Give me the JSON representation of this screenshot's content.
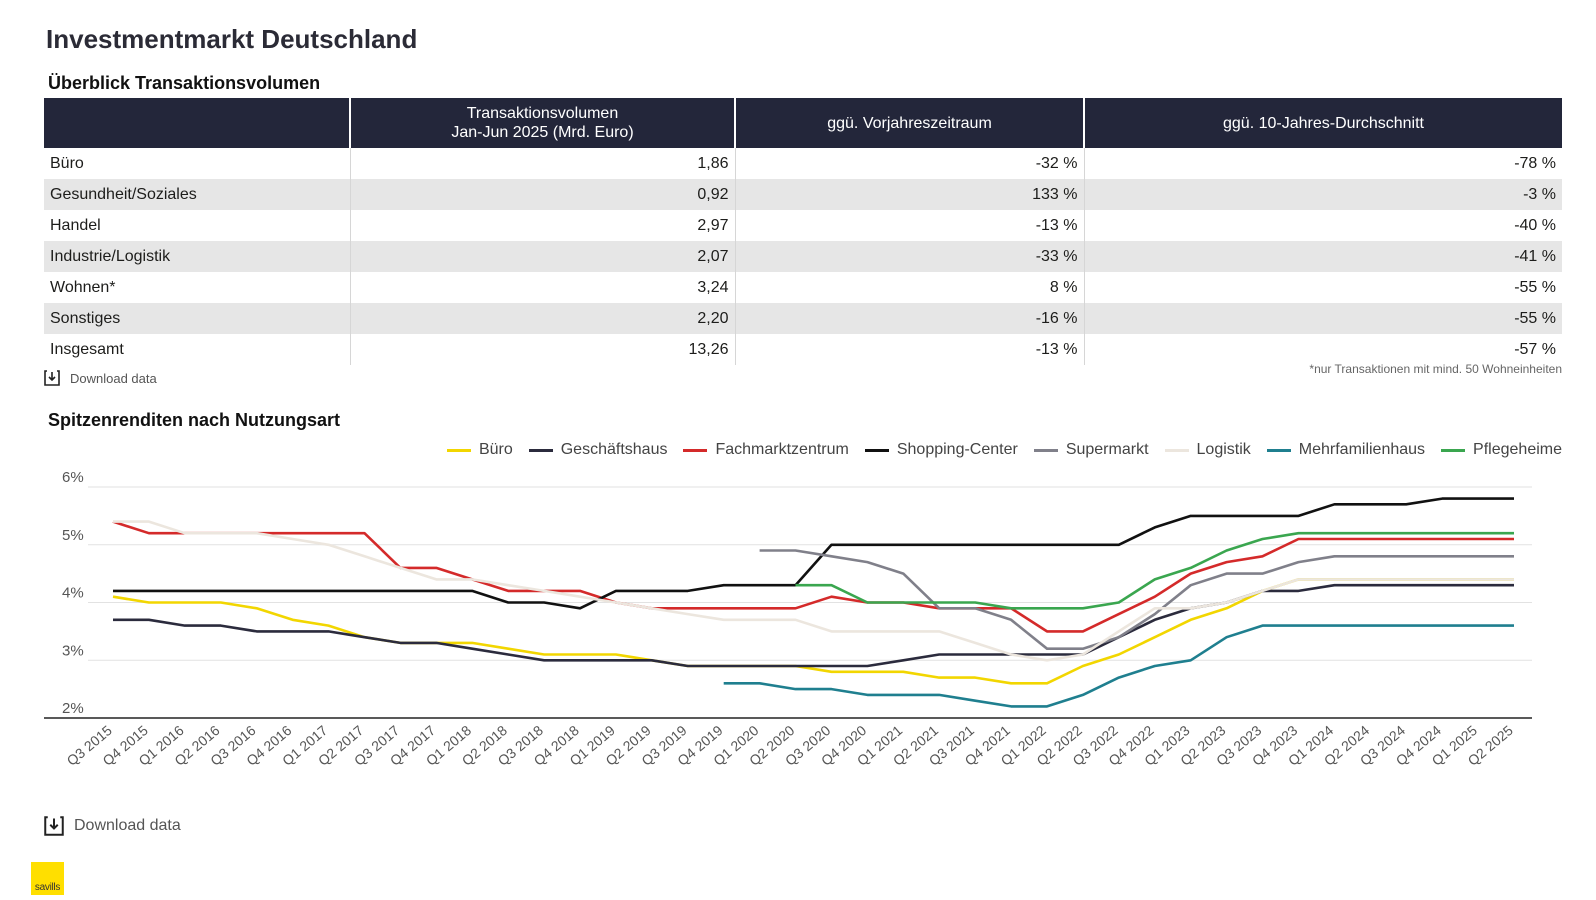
{
  "page_title": "Investmentmarkt Deutschland",
  "table_section_title": "Überblick Transaktionsvolumen",
  "table": {
    "headers": [
      "",
      "Transaktionsvolumen\nJan-Jun 2025 (Mrd. Euro)",
      "ggü. Vorjahreszeitraum",
      "ggü. 10-Jahres-Durchschnitt"
    ],
    "rows": [
      [
        "Büro",
        "1,86",
        "-32 %",
        "-78 %"
      ],
      [
        "Gesundheit/Soziales",
        "0,92",
        "133 %",
        "-3 %"
      ],
      [
        "Handel",
        "2,97",
        "-13 %",
        "-40 %"
      ],
      [
        "Industrie/Logistik",
        "2,07",
        "-33 %",
        "-41 %"
      ],
      [
        "Wohnen*",
        "3,24",
        "8 %",
        "-55 %"
      ],
      [
        "Sonstiges",
        "2,20",
        "-16 %",
        "-55 %"
      ],
      [
        "Insgesamt",
        "13,26",
        "-13 %",
        "-57 %"
      ]
    ]
  },
  "footnote": "*nur Transaktionen mit mind. 50 Wohneinheiten",
  "download_label": "Download data",
  "chart_section_title": "Spitzenrenditen nach Nutzungsart",
  "logo_text": "savills",
  "chart_data": {
    "type": "line",
    "title": "Spitzenrenditen nach Nutzungsart",
    "xlabel": "",
    "ylabel": "",
    "ylim": [
      2,
      6
    ],
    "yticks": [
      2,
      3,
      4,
      5,
      6
    ],
    "ytick_labels": [
      "2%",
      "3%",
      "4%",
      "5%",
      "6%"
    ],
    "grid": true,
    "legend": "top-right",
    "x": [
      "Q3 2015",
      "Q4 2015",
      "Q1 2016",
      "Q2 2016",
      "Q3 2016",
      "Q4 2016",
      "Q1 2017",
      "Q2 2017",
      "Q3 2017",
      "Q4 2017",
      "Q1 2018",
      "Q2 2018",
      "Q3 2018",
      "Q4 2018",
      "Q1 2019",
      "Q2 2019",
      "Q3 2019",
      "Q4 2019",
      "Q1 2020",
      "Q2 2020",
      "Q3 2020",
      "Q4 2020",
      "Q1 2021",
      "Q2 2021",
      "Q3 2021",
      "Q4 2021",
      "Q1 2022",
      "Q2 2022",
      "Q3 2022",
      "Q4 2022",
      "Q1 2023",
      "Q2 2023",
      "Q3 2023",
      "Q4 2023",
      "Q1 2024",
      "Q2 2024",
      "Q3 2024",
      "Q4 2024",
      "Q1 2025",
      "Q2 2025"
    ],
    "series": [
      {
        "name": "Büro",
        "color": "#f2d600",
        "values": [
          4.1,
          4.0,
          4.0,
          4.0,
          3.9,
          3.7,
          3.6,
          3.4,
          3.3,
          3.3,
          3.3,
          3.2,
          3.1,
          3.1,
          3.1,
          3.0,
          2.9,
          2.9,
          2.9,
          2.9,
          2.8,
          2.8,
          2.8,
          2.7,
          2.7,
          2.6,
          2.6,
          2.9,
          3.1,
          3.4,
          3.7,
          3.9,
          4.2,
          4.4,
          4.4,
          4.4,
          4.4,
          4.4,
          4.4,
          4.4
        ]
      },
      {
        "name": "Geschäftshaus",
        "color": "#2b2b3d",
        "values": [
          3.7,
          3.7,
          3.6,
          3.6,
          3.5,
          3.5,
          3.5,
          3.4,
          3.3,
          3.3,
          3.2,
          3.1,
          3.0,
          3.0,
          3.0,
          3.0,
          2.9,
          2.9,
          2.9,
          2.9,
          2.9,
          2.9,
          3.0,
          3.1,
          3.1,
          3.1,
          3.1,
          3.1,
          3.4,
          3.7,
          3.9,
          4.0,
          4.2,
          4.2,
          4.3,
          4.3,
          4.3,
          4.3,
          4.3,
          4.3
        ]
      },
      {
        "name": "Fachmarktzentrum",
        "color": "#d42a2a",
        "values": [
          5.4,
          5.2,
          5.2,
          5.2,
          5.2,
          5.2,
          5.2,
          5.2,
          4.6,
          4.6,
          4.4,
          4.2,
          4.2,
          4.2,
          4.0,
          3.9,
          3.9,
          3.9,
          3.9,
          3.9,
          4.1,
          4.0,
          4.0,
          3.9,
          3.9,
          3.9,
          3.5,
          3.5,
          3.8,
          4.1,
          4.5,
          4.7,
          4.8,
          5.1,
          5.1,
          5.1,
          5.1,
          5.1,
          5.1,
          5.1
        ]
      },
      {
        "name": "Shopping-Center",
        "color": "#111111",
        "values": [
          4.2,
          4.2,
          4.2,
          4.2,
          4.2,
          4.2,
          4.2,
          4.2,
          4.2,
          4.2,
          4.2,
          4.0,
          4.0,
          3.9,
          4.2,
          4.2,
          4.2,
          4.3,
          4.3,
          4.3,
          5.0,
          5.0,
          5.0,
          5.0,
          5.0,
          5.0,
          5.0,
          5.0,
          5.0,
          5.3,
          5.5,
          5.5,
          5.5,
          5.5,
          5.7,
          5.7,
          5.7,
          5.8,
          5.8,
          5.8
        ]
      },
      {
        "name": "Supermarkt",
        "color": "#80808a",
        "values": [
          null,
          null,
          null,
          null,
          null,
          null,
          null,
          null,
          null,
          null,
          null,
          null,
          null,
          null,
          null,
          null,
          null,
          null,
          4.9,
          4.9,
          4.8,
          4.7,
          4.5,
          3.9,
          3.9,
          3.7,
          3.2,
          3.2,
          3.4,
          3.8,
          4.3,
          4.5,
          4.5,
          4.7,
          4.8,
          4.8,
          4.8,
          4.8,
          4.8,
          4.8
        ]
      },
      {
        "name": "Logistik",
        "color": "#ece6de",
        "values": [
          5.4,
          5.4,
          5.2,
          5.2,
          5.2,
          5.1,
          5.0,
          4.8,
          4.6,
          4.4,
          4.4,
          4.3,
          4.2,
          4.1,
          4.0,
          3.9,
          3.8,
          3.7,
          3.7,
          3.7,
          3.5,
          3.5,
          3.5,
          3.5,
          3.3,
          3.1,
          3.0,
          3.1,
          3.5,
          3.9,
          3.9,
          4.0,
          4.2,
          4.4,
          4.4,
          4.4,
          4.4,
          4.4,
          4.4,
          4.4
        ]
      },
      {
        "name": "Mehrfamilienhaus",
        "color": "#1f7f8f",
        "values": [
          null,
          null,
          null,
          null,
          null,
          null,
          null,
          null,
          null,
          null,
          null,
          null,
          null,
          null,
          null,
          null,
          null,
          2.6,
          2.6,
          2.5,
          2.5,
          2.4,
          2.4,
          2.4,
          2.3,
          2.2,
          2.2,
          2.4,
          2.7,
          2.9,
          3.0,
          3.4,
          3.6,
          3.6,
          3.6,
          3.6,
          3.6,
          3.6,
          3.6,
          3.6
        ]
      },
      {
        "name": "Pflegeheime",
        "color": "#3aa64f",
        "values": [
          null,
          null,
          null,
          null,
          null,
          null,
          null,
          null,
          null,
          null,
          null,
          null,
          null,
          null,
          null,
          null,
          null,
          null,
          null,
          4.3,
          4.3,
          4.0,
          4.0,
          4.0,
          4.0,
          3.9,
          3.9,
          3.9,
          4.0,
          4.4,
          4.6,
          4.9,
          5.1,
          5.2,
          5.2,
          5.2,
          5.2,
          5.2,
          5.2,
          5.2
        ]
      }
    ]
  }
}
